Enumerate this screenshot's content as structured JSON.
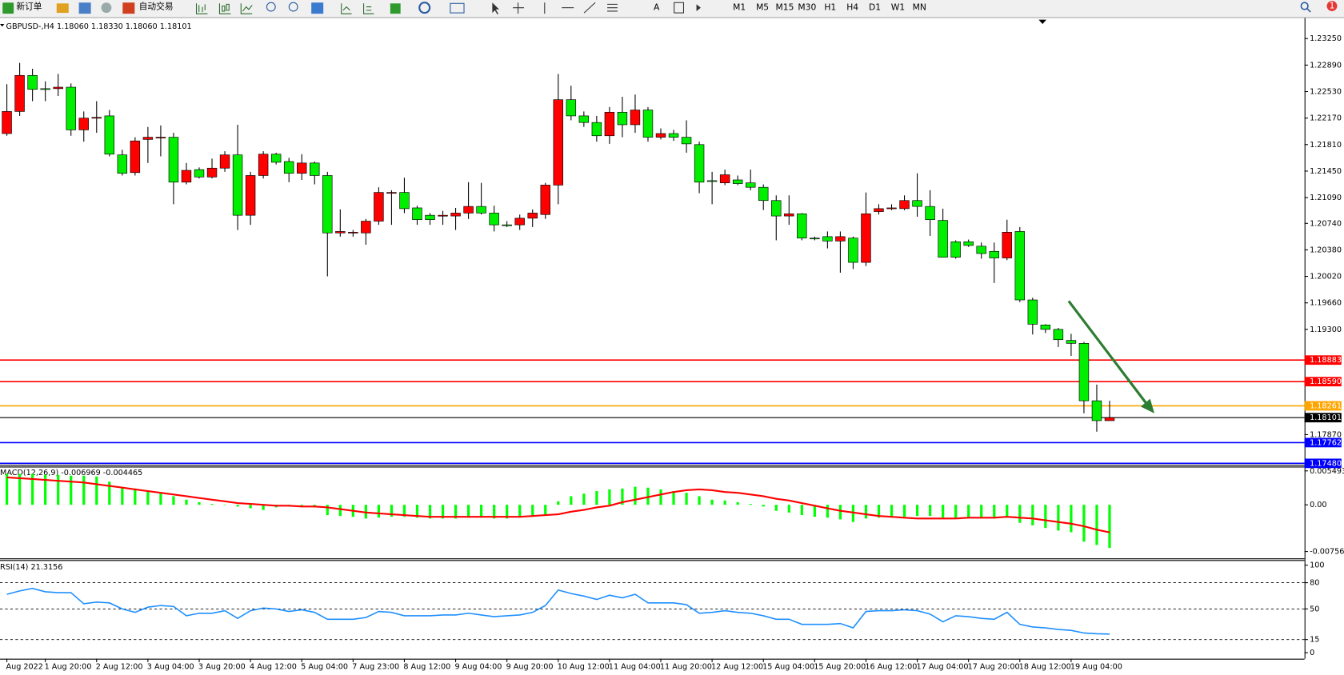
{
  "toolbar": {
    "new_order": "新订单",
    "auto_trading": "自动交易",
    "timeframes": [
      "M1",
      "M5",
      "M15",
      "M30",
      "H1",
      "H4",
      "D1",
      "W1",
      "MN"
    ],
    "notification_count": "1"
  },
  "chart_data": [
    {
      "type": "candlestick",
      "title": "GBPUSD-,H4 1.18060 1.18330 1.18060 1.18101",
      "categories": [
        "Aug 2022",
        null,
        null,
        "1 Aug 20:00",
        null,
        null,
        null,
        "2 Aug 12:00",
        null,
        null,
        null,
        "3 Aug 04:00",
        null,
        null,
        null,
        "3 Aug 20:00",
        null,
        null,
        null,
        "4 Aug 12:00",
        null,
        null,
        null,
        "5 Aug 04:00",
        null,
        null,
        null,
        "7 Aug 23:00",
        null,
        null,
        null,
        "8 Aug 12:00",
        null,
        null,
        null,
        "9 Aug 04:00",
        null,
        null,
        null,
        "9 Aug 20:00",
        null,
        null,
        null,
        "10 Aug 12:00",
        null,
        null,
        null,
        "11 Aug 04:00",
        null,
        null,
        null,
        "11 Aug 20:00",
        null,
        null,
        null,
        "12 Aug 12:00",
        null,
        null,
        null,
        "15 Aug 04:00",
        null,
        null,
        null,
        "15 Aug 20:00",
        null,
        null,
        null,
        "16 Aug 12:00",
        null,
        null,
        null,
        "17 Aug 04:00",
        null,
        null,
        null,
        "17 Aug 20:00",
        null,
        null,
        null,
        "18 Aug 12:00",
        null,
        null,
        null,
        "19 Aug 04:00",
        null,
        null,
        null
      ],
      "open": [
        1.2196,
        1.2226,
        1.2275,
        1.2257,
        1.2257,
        1.2259,
        1.2201,
        1.2217,
        1.222,
        1.2167,
        1.2143,
        1.2188,
        1.219,
        1.2191,
        1.213,
        1.2147,
        1.2137,
        1.2149,
        1.2167,
        1.2085,
        1.2139,
        1.2168,
        1.2158,
        1.2142,
        1.2156,
        1.2139,
        1.2061,
        1.2061,
        1.2061,
        1.2077,
        1.2115,
        1.2116,
        1.2095,
        1.2085,
        1.2084,
        1.2084,
        1.2088,
        1.2097,
        1.2088,
        1.2072,
        1.2072,
        1.2081,
        1.2086,
        1.2126,
        1.2242,
        1.222,
        1.2211,
        1.2193,
        1.2225,
        1.2208,
        1.2228,
        1.2191,
        1.2196,
        1.2191,
        1.2181,
        1.2132,
        1.2129,
        1.2133,
        1.2129,
        1.2123,
        1.2105,
        1.2084,
        1.2087,
        1.2054,
        1.2056,
        1.205,
        1.2054,
        1.2021,
        1.209,
        1.2095,
        1.2094,
        1.2105,
        1.2097,
        1.2078,
        1.2049,
        1.2049,
        1.2043,
        1.2036,
        1.2027,
        1.2063,
        1.197,
        1.1936,
        1.193,
        1.1915,
        1.1911,
        1.1833,
        1.1806
      ],
      "high": [
        1.2263,
        1.2292,
        1.2284,
        1.2267,
        1.2277,
        1.2264,
        1.2226,
        1.224,
        1.2228,
        1.2174,
        1.2191,
        1.2205,
        1.2207,
        1.2197,
        1.2156,
        1.215,
        1.2162,
        1.2172,
        1.2208,
        1.2144,
        1.2172,
        1.217,
        1.2163,
        1.2168,
        1.2158,
        1.2144,
        1.2093,
        1.2065,
        1.208,
        1.2123,
        1.2119,
        1.2136,
        1.2098,
        1.2088,
        1.2091,
        1.2095,
        1.213,
        1.2129,
        1.2098,
        1.2077,
        1.2086,
        1.2093,
        1.2129,
        1.2277,
        1.2261,
        1.2226,
        1.222,
        1.2232,
        1.2246,
        1.2249,
        1.2232,
        1.2203,
        1.2201,
        1.2214,
        1.2185,
        1.2144,
        1.2147,
        1.2139,
        1.2147,
        1.2127,
        1.2112,
        1.2112,
        1.2088,
        1.2056,
        1.2063,
        1.2063,
        1.2056,
        1.2116,
        1.21,
        1.21,
        1.2112,
        1.2142,
        1.2119,
        1.2094,
        1.2051,
        1.2052,
        1.2048,
        1.2048,
        1.2079,
        1.2069,
        1.1973,
        1.1937,
        1.1932,
        1.1924,
        1.1913,
        1.1855,
        1.1833
      ],
      "low": [
        1.2193,
        1.222,
        1.224,
        1.224,
        1.2247,
        1.2193,
        1.2185,
        1.2197,
        1.2165,
        1.2139,
        1.2139,
        1.2156,
        1.2165,
        1.21,
        1.2127,
        1.2135,
        1.2135,
        1.2144,
        1.2065,
        1.2072,
        1.2135,
        1.2154,
        1.213,
        1.2133,
        1.2127,
        1.2002,
        1.2056,
        1.2056,
        1.2045,
        1.2072,
        1.2072,
        1.2088,
        1.2072,
        1.2072,
        1.2072,
        1.2065,
        1.208,
        1.2086,
        1.2063,
        1.2069,
        1.2065,
        1.2069,
        1.208,
        1.21,
        1.2214,
        1.2205,
        1.2185,
        1.2182,
        1.2191,
        1.2197,
        1.2185,
        1.2188,
        1.2186,
        1.217,
        1.2115,
        1.21,
        1.2126,
        1.2126,
        1.2119,
        1.2092,
        1.2051,
        1.2072,
        1.2051,
        1.2051,
        1.204,
        1.2007,
        1.2012,
        1.2016,
        1.2086,
        1.2092,
        1.2092,
        1.2083,
        1.2057,
        1.2028,
        1.2026,
        1.2042,
        1.2026,
        1.1993,
        1.2024,
        1.1967,
        1.1923,
        1.1925,
        1.1906,
        1.1894,
        1.1816,
        1.1791,
        1.1806
      ],
      "close": [
        1.2226,
        1.2275,
        1.2256,
        1.2256,
        1.2259,
        1.2201,
        1.2217,
        1.2218,
        1.2168,
        1.2142,
        1.2186,
        1.2191,
        1.2191,
        1.213,
        1.2146,
        1.2137,
        1.2149,
        1.2167,
        1.2085,
        1.2139,
        1.2168,
        1.2157,
        1.2142,
        1.2156,
        1.2139,
        1.2061,
        1.2063,
        1.2062,
        1.2077,
        1.2116,
        1.2116,
        1.2094,
        1.2079,
        1.2079,
        1.2085,
        1.2088,
        1.2097,
        1.2088,
        1.2072,
        1.2071,
        1.2081,
        1.2088,
        1.2126,
        1.2242,
        1.222,
        1.2211,
        1.2193,
        1.2225,
        1.2208,
        1.2228,
        1.2191,
        1.2196,
        1.2191,
        1.2182,
        1.213,
        1.2131,
        1.214,
        1.2128,
        1.2123,
        1.2105,
        1.2084,
        1.2087,
        1.2054,
        1.2053,
        1.205,
        1.2056,
        1.2021,
        1.2087,
        1.2094,
        1.2095,
        1.2105,
        1.2097,
        1.2079,
        1.2028,
        1.2028,
        1.2044,
        1.2033,
        1.2027,
        1.2062,
        1.197,
        1.1937,
        1.193,
        1.1916,
        1.1911,
        1.1833,
        1.1806,
        1.18101
      ],
      "up_color": "#ff0000",
      "down_color": "#00ee00",
      "ylim": [
        1.17471,
        1.23483
      ],
      "yticks": [
        {
          "value": 1.2325,
          "label": "1.23250"
        },
        {
          "value": 1.2289,
          "label": "1.22890"
        },
        {
          "value": 1.2253,
          "label": "1.22530"
        },
        {
          "value": 1.2217,
          "label": "1.22170"
        },
        {
          "value": 1.2181,
          "label": "1.21810"
        },
        {
          "value": 1.2145,
          "label": "1.21450"
        },
        {
          "value": 1.2109,
          "label": "1.21090"
        },
        {
          "value": 1.2074,
          "label": "1.20740"
        },
        {
          "value": 1.2038,
          "label": "1.20380"
        },
        {
          "value": 1.2002,
          "label": "1.20020"
        },
        {
          "value": 1.1966,
          "label": "1.19660"
        },
        {
          "value": 1.193,
          "label": "1.19300"
        },
        {
          "value": 1.1787,
          "label": "1.17870"
        }
      ],
      "levels": [
        {
          "value": 1.18883,
          "label": "1.18883",
          "color": "#ff0000"
        },
        {
          "value": 1.1859,
          "label": "1.18590",
          "color": "#ff0000"
        },
        {
          "value": 1.18261,
          "label": "1.18261",
          "color": "#ffa500"
        },
        {
          "value": 1.18101,
          "label": "1.18101",
          "color": "#000000"
        },
        {
          "value": 1.17762,
          "label": "1.17762",
          "color": "#0000ff"
        },
        {
          "value": 1.1748,
          "label": "1.17480",
          "color": "#0000ff"
        }
      ]
    },
    {
      "type": "macd",
      "title": "MACD(12,26,9) -0.006969 -0.004465",
      "histogram": {
        "color": "#00ff00",
        "values": [
          0.005,
          0.005,
          0.005,
          0.00486,
          0.00486,
          0.00472,
          0.00472,
          0.00458,
          0.00375,
          0.00292,
          0.00264,
          0.00222,
          0.00181,
          0.00139,
          0.00083,
          0.00042,
          0.00014,
          3e-05,
          -0.00028,
          -0.00056,
          -0.00083,
          -0.00042,
          -0.00028,
          -0.00028,
          -0.00042,
          -0.00167,
          -0.00181,
          -0.00194,
          -0.00222,
          -0.00208,
          -0.00194,
          -0.00194,
          -0.00208,
          -0.00222,
          -0.00222,
          -0.00222,
          -0.00208,
          -0.00208,
          -0.00222,
          -0.00222,
          -0.00208,
          -0.00194,
          -0.00153,
          0.00056,
          0.00139,
          0.00181,
          0.00222,
          0.0025,
          0.00264,
          0.00292,
          0.00278,
          0.0025,
          0.00222,
          0.00194,
          0.00139,
          0.00083,
          0.00069,
          0.00042,
          0.00014,
          -0.00028,
          -0.00097,
          -0.00125,
          -0.00167,
          -0.00194,
          -0.00208,
          -0.00236,
          -0.00278,
          -0.00222,
          -0.00208,
          -0.00194,
          -0.00194,
          -0.00181,
          -0.00181,
          -0.00208,
          -0.00222,
          -0.00208,
          -0.00222,
          -0.00222,
          -0.00208,
          -0.00292,
          -0.00333,
          -0.00375,
          -0.00417,
          -0.00444,
          -0.00597,
          -0.0065,
          -0.006969
        ]
      },
      "signal": {
        "color": "#ff0000",
        "values": [
          0.00444,
          0.00431,
          0.00417,
          0.00403,
          0.00389,
          0.00375,
          0.00361,
          0.00333,
          0.00306,
          0.00278,
          0.0025,
          0.00222,
          0.00194,
          0.00167,
          0.00139,
          0.00111,
          0.00083,
          0.00056,
          0.00028,
          0.00014,
          0,
          -0.00014,
          -0.00014,
          -0.00028,
          -0.00028,
          -0.00042,
          -0.00069,
          -0.00097,
          -0.00125,
          -0.00139,
          -0.00153,
          -0.00167,
          -0.00181,
          -0.00194,
          -0.00194,
          -0.00194,
          -0.00194,
          -0.00194,
          -0.00194,
          -0.00194,
          -0.00194,
          -0.00181,
          -0.00167,
          -0.00153,
          -0.00111,
          -0.00083,
          -0.00042,
          -0.00014,
          0.00042,
          0.00083,
          0.00125,
          0.00167,
          0.00208,
          0.00236,
          0.0025,
          0.00236,
          0.00208,
          0.00194,
          0.00167,
          0.00139,
          0.00097,
          0.00069,
          0.00028,
          -0.00014,
          -0.00056,
          -0.00097,
          -0.00125,
          -0.00153,
          -0.00181,
          -0.00194,
          -0.00208,
          -0.00222,
          -0.00222,
          -0.00222,
          -0.00222,
          -0.00208,
          -0.00208,
          -0.00208,
          -0.00194,
          -0.00208,
          -0.00222,
          -0.0025,
          -0.00278,
          -0.00306,
          -0.00347,
          -0.00403,
          -0.004465
        ]
      },
      "ylim": [
        -0.00853,
        0.00605
      ],
      "yticks": [
        0.005493,
        {
          "value": 0,
          "label": "0.00"
        },
        -0.007562
      ]
    },
    {
      "type": "line",
      "title": "RSI(14) 21.3156",
      "color": "#1e8fff",
      "values": [
        66.7,
        70.6,
        73.5,
        69.6,
        68.6,
        68.6,
        55.9,
        57.8,
        56.9,
        50.0,
        46.1,
        52.0,
        53.9,
        52.9,
        42.2,
        45.1,
        45.1,
        48.0,
        39.2,
        48.0,
        51.0,
        50.0,
        47.1,
        49.0,
        46.1,
        38.2,
        38.2,
        38.2,
        40.2,
        47.1,
        46.1,
        42.2,
        42.2,
        42.2,
        43.1,
        43.1,
        45.1,
        43.1,
        41.2,
        42.2,
        43.1,
        46.1,
        53.9,
        71.6,
        67.6,
        64.7,
        60.8,
        65.7,
        62.7,
        66.7,
        56.9,
        56.9,
        56.9,
        54.9,
        45.1,
        46.1,
        48.0,
        46.1,
        45.1,
        42.2,
        38.2,
        38.2,
        32.4,
        32.4,
        32.4,
        33.3,
        28.4,
        47.1,
        48.0,
        48.0,
        49.0,
        48.0,
        44.1,
        35.3,
        42.2,
        41.2,
        39.2,
        38.2,
        46.1,
        32.4,
        29.4,
        28.4,
        26.5,
        25.5,
        22.5,
        21.6,
        21.3156
      ],
      "ylim": [
        -5.9,
        103.9
      ],
      "yticks": [
        100,
        80,
        50,
        15,
        0
      ],
      "levels": [
        80,
        50,
        15
      ]
    }
  ]
}
